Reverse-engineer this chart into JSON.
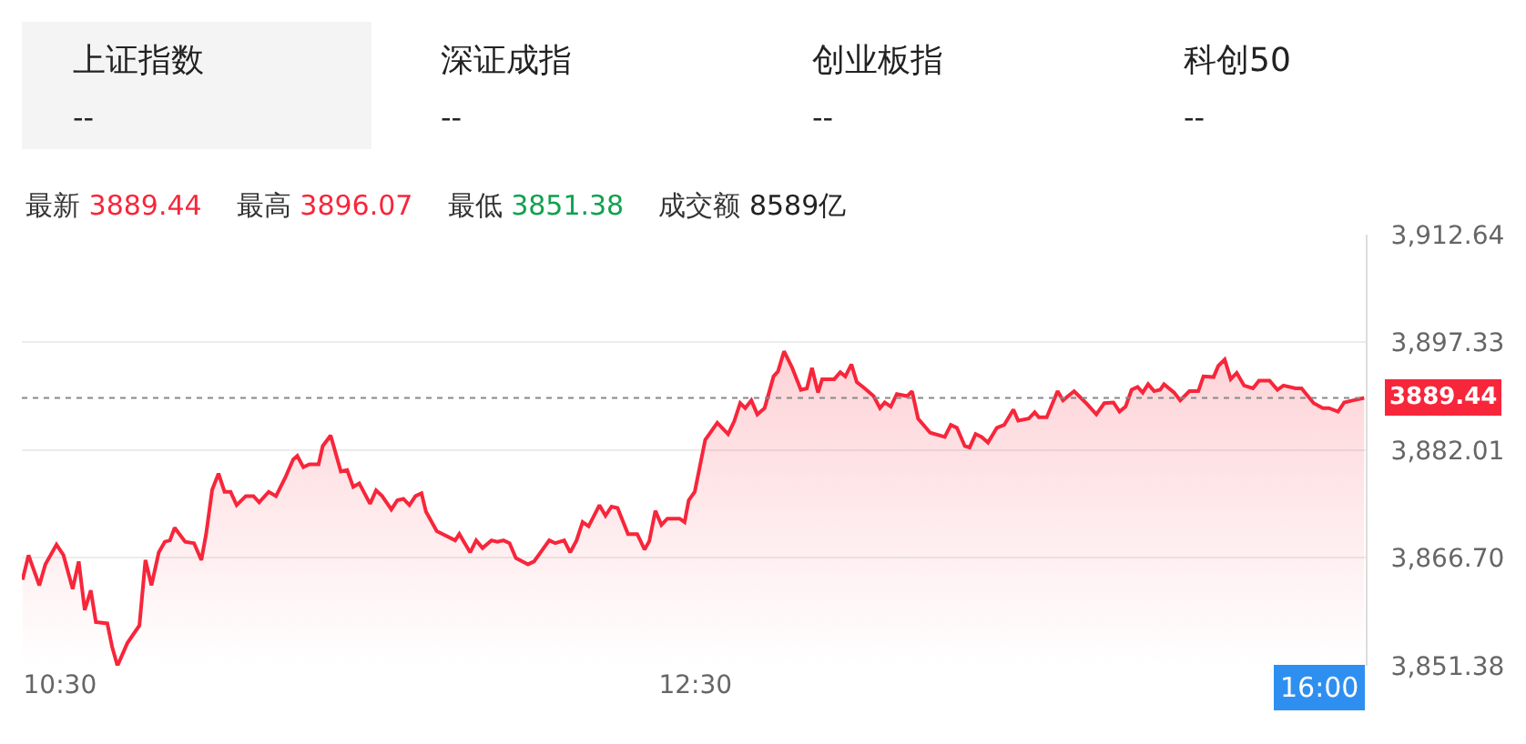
{
  "chart_data": {
    "type": "area",
    "x": [
      10.382,
      10.401,
      10.435,
      10.454,
      10.489,
      10.511,
      10.54,
      10.559,
      10.578,
      10.597,
      10.613,
      10.649,
      10.664,
      10.681,
      10.712,
      10.75,
      10.769,
      10.788,
      10.811,
      10.83,
      10.846,
      10.861,
      10.894,
      10.922,
      10.945,
      10.96,
      10.979,
      10.999,
      11.018,
      11.037,
      11.056,
      11.085,
      11.109,
      11.127,
      11.157,
      11.18,
      11.209,
      11.234,
      11.247,
      11.266,
      11.285,
      11.314,
      11.327,
      11.352,
      11.384,
      11.404,
      11.423,
      11.442,
      11.476,
      11.495,
      11.514,
      11.543,
      11.562,
      11.581,
      11.6,
      11.619,
      11.638,
      11.652,
      11.686,
      11.744,
      11.757,
      11.791,
      11.81,
      11.83,
      11.858,
      11.877,
      11.896,
      11.915,
      11.935,
      11.973,
      11.992,
      12.04,
      12.059,
      12.087,
      12.106,
      12.126,
      12.145,
      12.164,
      12.198,
      12.217,
      12.236,
      12.255,
      12.288,
      12.317,
      12.34,
      12.355,
      12.374,
      12.393,
      12.412,
      12.45,
      12.466,
      12.479,
      12.498,
      12.531,
      12.569,
      12.603,
      12.622,
      12.641,
      12.657,
      12.676,
      12.695,
      12.718,
      12.746,
      12.76,
      12.779,
      12.804,
      12.832,
      12.851,
      12.867,
      12.886,
      12.899,
      12.937,
      12.956,
      12.972,
      12.991,
      13.008,
      13.033,
      13.061,
      13.081,
      13.096,
      13.115,
      13.134,
      13.167,
      13.182,
      13.201,
      13.239,
      13.285,
      13.304,
      13.323,
      13.348,
      13.363,
      13.382,
      13.401,
      13.421,
      13.449,
      13.472,
      13.501,
      13.516,
      13.549,
      13.568,
      13.581,
      13.606,
      13.64,
      13.657,
      13.692,
      13.73,
      13.762,
      13.787,
      13.816,
      13.835,
      13.854,
      13.873,
      13.892,
      13.908,
      13.925,
      13.944,
      13.963,
      13.975,
      14.007,
      14.026,
      14.055,
      14.083,
      14.099,
      14.131,
      14.146,
      14.166,
      14.185,
      14.204,
      14.227,
      14.255,
      14.274,
      14.307,
      14.332,
      14.351,
      14.389,
      14.408,
      14.446,
      14.475,
      14.494,
      14.523,
      14.542,
      14.571,
      14.605
    ],
    "series": [
      {
        "color": "#f7263b",
        "values": [
          3863.6,
          3867.1,
          3862.8,
          3865.8,
          3868.6,
          3867.1,
          3862.3,
          3866.2,
          3859.3,
          3862.1,
          3857.6,
          3857.4,
          3854.1,
          3851.38,
          3854.6,
          3857.1,
          3866.4,
          3862.8,
          3867.5,
          3869.0,
          3869.2,
          3871.0,
          3869.0,
          3868.8,
          3866.4,
          3870.1,
          3876.4,
          3878.7,
          3876.1,
          3876.1,
          3874.2,
          3875.5,
          3875.5,
          3874.6,
          3876.1,
          3875.5,
          3878.1,
          3880.7,
          3881.2,
          3879.6,
          3880.0,
          3880.0,
          3882.6,
          3884.1,
          3879.0,
          3879.2,
          3876.8,
          3877.3,
          3874.4,
          3876.3,
          3875.5,
          3873.6,
          3874.9,
          3875.1,
          3874.2,
          3875.5,
          3875.9,
          3873.3,
          3870.5,
          3869.2,
          3870.1,
          3867.5,
          3869.2,
          3868.1,
          3869.2,
          3869.0,
          3869.2,
          3868.8,
          3866.7,
          3865.8,
          3866.2,
          3869.2,
          3868.8,
          3869.2,
          3867.5,
          3869.2,
          3871.8,
          3871.2,
          3874.2,
          3872.7,
          3874.0,
          3873.8,
          3870.1,
          3870.1,
          3867.9,
          3869.1,
          3873.4,
          3871.4,
          3872.3,
          3872.3,
          3871.8,
          3874.9,
          3876.1,
          3883.5,
          3885.9,
          3884.3,
          3886.1,
          3888.7,
          3888.0,
          3889.1,
          3887.1,
          3888.0,
          3892.5,
          3893.2,
          3896.07,
          3893.8,
          3890.6,
          3890.8,
          3893.7,
          3890.2,
          3892.1,
          3892.1,
          3893.1,
          3892.5,
          3894.2,
          3891.7,
          3890.8,
          3889.7,
          3888.0,
          3888.8,
          3888.2,
          3890.0,
          3889.7,
          3890.4,
          3886.5,
          3884.5,
          3883.9,
          3885.6,
          3885.2,
          3882.6,
          3882.4,
          3884.3,
          3883.9,
          3883.1,
          3885.2,
          3885.6,
          3887.8,
          3886.2,
          3886.5,
          3887.4,
          3886.7,
          3886.7,
          3890.4,
          3889.1,
          3890.4,
          3888.7,
          3887.1,
          3888.7,
          3888.8,
          3887.5,
          3888.2,
          3890.6,
          3891.0,
          3890.2,
          3891.4,
          3890.4,
          3890.6,
          3891.4,
          3890.2,
          3889.1,
          3890.4,
          3890.4,
          3892.5,
          3892.4,
          3894.0,
          3894.9,
          3892.1,
          3893.0,
          3891.2,
          3890.8,
          3891.9,
          3891.9,
          3890.6,
          3891.2,
          3890.8,
          3890.8,
          3888.7,
          3888.0,
          3888.0,
          3887.5,
          3888.8,
          3889.1,
          3889.44
        ]
      }
    ],
    "xlim": [
      10.38,
      14.61
    ],
    "ylim": [
      3851.38,
      3912.64
    ],
    "xticks": [
      {
        "value": 10.5,
        "label": "10:30"
      },
      {
        "value": 12.5,
        "label": "12:30"
      }
    ],
    "yticks": [
      {
        "value": 3851.38,
        "label": "3,851.38"
      },
      {
        "value": 3866.7,
        "label": "3,866.70"
      },
      {
        "value": 3882.01,
        "label": "3,882.01"
      },
      {
        "value": 3897.33,
        "label": "3,897.33"
      },
      {
        "value": 3912.64,
        "label": "3,912.64"
      }
    ],
    "grid": "y",
    "ref_lines": [
      {
        "axis": "y",
        "value": 3889.44,
        "label": "3889.44",
        "color": "#888888",
        "line_style": "dotted"
      }
    ],
    "annotations": [
      "上证指数",
      "--",
      "深证成指",
      "--",
      "创业板指",
      "--",
      "科创50",
      "--",
      "最新",
      "3889.44",
      "最高",
      "3896.07",
      "最低",
      "3851.38",
      "成交额",
      "8589亿",
      "16:00"
    ]
  }
}
